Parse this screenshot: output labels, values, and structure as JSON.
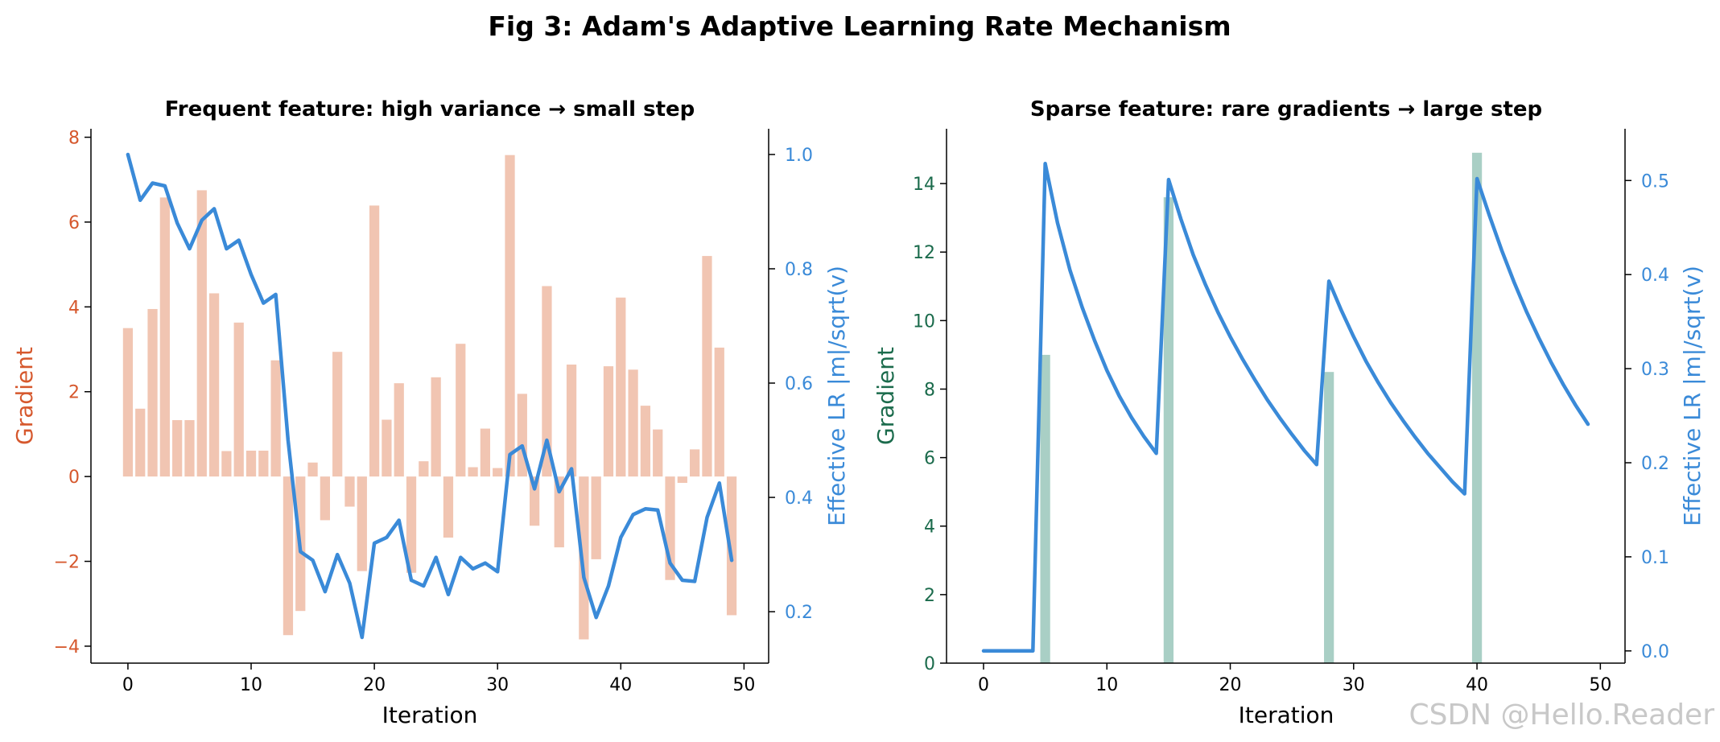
{
  "figure": {
    "title": "Fig 3: Adam's Adaptive Learning Rate Mechanism",
    "watermark": "CSDN @Hello.Reader"
  },
  "colors": {
    "left_gradient": "#d6582d",
    "left_bar": "#f1c5b2",
    "lr_line": "#3a8ad8",
    "right_gradient": "#1b6b4c",
    "right_bar": "#a9cfc5"
  },
  "chart_data": [
    {
      "type": "bar",
      "title": "Frequent feature: high variance → small step",
      "xlabel": "Iteration",
      "ylabel": "Gradient",
      "y2label": "Effective LR  |m|/sqrt(v)",
      "xlim": [
        -3,
        52
      ],
      "ylim": [
        -4.4,
        8.2
      ],
      "y2lim": [
        0.11,
        1.045
      ],
      "xticks": [
        0,
        10,
        20,
        30,
        40,
        50
      ],
      "yticks": [
        -4,
        -2,
        0,
        2,
        4,
        6,
        8
      ],
      "yticklabels": [
        "−4",
        "−2",
        "0",
        "2",
        "4",
        "6",
        "8"
      ],
      "y2ticks": [
        0.2,
        0.4,
        0.6,
        0.8,
        1.0
      ],
      "y2ticklabels": [
        "0.2",
        "0.4",
        "0.6",
        "0.8",
        "1.0"
      ],
      "x": [
        0,
        1,
        2,
        3,
        4,
        5,
        6,
        7,
        8,
        9,
        10,
        11,
        12,
        13,
        14,
        15,
        16,
        17,
        18,
        19,
        20,
        21,
        22,
        23,
        24,
        25,
        26,
        27,
        28,
        29,
        30,
        31,
        32,
        33,
        34,
        35,
        36,
        37,
        38,
        39,
        40,
        41,
        42,
        43,
        44,
        45,
        46,
        47,
        48,
        49
      ],
      "series": [
        {
          "name": "Gradient",
          "kind": "bar",
          "values": [
            3.5,
            1.6,
            3.95,
            6.58,
            1.33,
            1.33,
            6.75,
            4.32,
            0.6,
            3.63,
            0.61,
            0.61,
            2.74,
            -3.74,
            -3.17,
            0.33,
            -1.03,
            2.94,
            -0.71,
            -2.23,
            6.39,
            1.34,
            2.2,
            -2.27,
            0.36,
            2.34,
            -1.44,
            3.13,
            0.22,
            1.13,
            0.2,
            7.58,
            1.95,
            -1.16,
            4.49,
            -1.67,
            2.64,
            -3.84,
            -1.95,
            2.6,
            4.22,
            2.52,
            1.67,
            1.11,
            -2.44,
            -0.15,
            0.64,
            5.2,
            3.04,
            -3.27
          ]
        },
        {
          "name": "Effective LR",
          "kind": "line",
          "axis": "y2",
          "values": [
            1.0,
            0.92,
            0.95,
            0.945,
            0.88,
            0.835,
            0.885,
            0.905,
            0.835,
            0.85,
            0.79,
            0.74,
            0.755,
            0.5,
            0.305,
            0.29,
            0.235,
            0.3,
            0.25,
            0.155,
            0.32,
            0.33,
            0.36,
            0.255,
            0.245,
            0.295,
            0.23,
            0.295,
            0.275,
            0.285,
            0.27,
            0.475,
            0.49,
            0.415,
            0.5,
            0.41,
            0.45,
            0.26,
            0.19,
            0.245,
            0.33,
            0.37,
            0.38,
            0.378,
            0.285,
            0.255,
            0.253,
            0.365,
            0.425,
            0.29
          ]
        }
      ]
    },
    {
      "type": "bar",
      "title": "Sparse feature: rare gradients → large step",
      "xlabel": "Iteration",
      "ylabel": "Gradient",
      "y2label": "Effective LR  |m|/sqrt(v)",
      "xlim": [
        -3,
        52
      ],
      "ylim": [
        0,
        15.6
      ],
      "y2lim": [
        -0.013,
        0.555
      ],
      "xticks": [
        0,
        10,
        20,
        30,
        40,
        50
      ],
      "yticks": [
        0,
        2,
        4,
        6,
        8,
        10,
        12,
        14
      ],
      "yticklabels": [
        "0",
        "2",
        "4",
        "6",
        "8",
        "10",
        "12",
        "14"
      ],
      "y2ticks": [
        0.0,
        0.1,
        0.2,
        0.3,
        0.4,
        0.5
      ],
      "y2ticklabels": [
        "0.0",
        "0.1",
        "0.2",
        "0.3",
        "0.4",
        "0.5"
      ],
      "x": [
        0,
        1,
        2,
        3,
        4,
        5,
        6,
        7,
        8,
        9,
        10,
        11,
        12,
        13,
        14,
        15,
        16,
        17,
        18,
        19,
        20,
        21,
        22,
        23,
        24,
        25,
        26,
        27,
        28,
        29,
        30,
        31,
        32,
        33,
        34,
        35,
        36,
        37,
        38,
        39,
        40,
        41,
        42,
        43,
        44,
        45,
        46,
        47,
        48,
        49
      ],
      "series": [
        {
          "name": "Gradient",
          "kind": "bar",
          "values": [
            0,
            0,
            0,
            0,
            0,
            9.0,
            0,
            0,
            0,
            0,
            0,
            0,
            0,
            0,
            0,
            13.6,
            0,
            0,
            0,
            0,
            0,
            0,
            0,
            0,
            0,
            0,
            0,
            0,
            8.5,
            0,
            0,
            0,
            0,
            0,
            0,
            0,
            0,
            0,
            0,
            0,
            14.9,
            0,
            0,
            0,
            0,
            0,
            0,
            0,
            0,
            0
          ]
        },
        {
          "name": "Effective LR",
          "kind": "line",
          "axis": "y2",
          "values": [
            0,
            0,
            0,
            0,
            0,
            0.518,
            0.455,
            0.405,
            0.365,
            0.33,
            0.298,
            0.271,
            0.248,
            0.228,
            0.21,
            0.501,
            0.459,
            0.421,
            0.389,
            0.36,
            0.334,
            0.31,
            0.288,
            0.267,
            0.248,
            0.23,
            0.213,
            0.198,
            0.393,
            0.362,
            0.334,
            0.308,
            0.285,
            0.264,
            0.245,
            0.227,
            0.21,
            0.195,
            0.18,
            0.167,
            0.502,
            0.463,
            0.426,
            0.392,
            0.361,
            0.333,
            0.307,
            0.283,
            0.261,
            0.241
          ]
        }
      ]
    }
  ]
}
